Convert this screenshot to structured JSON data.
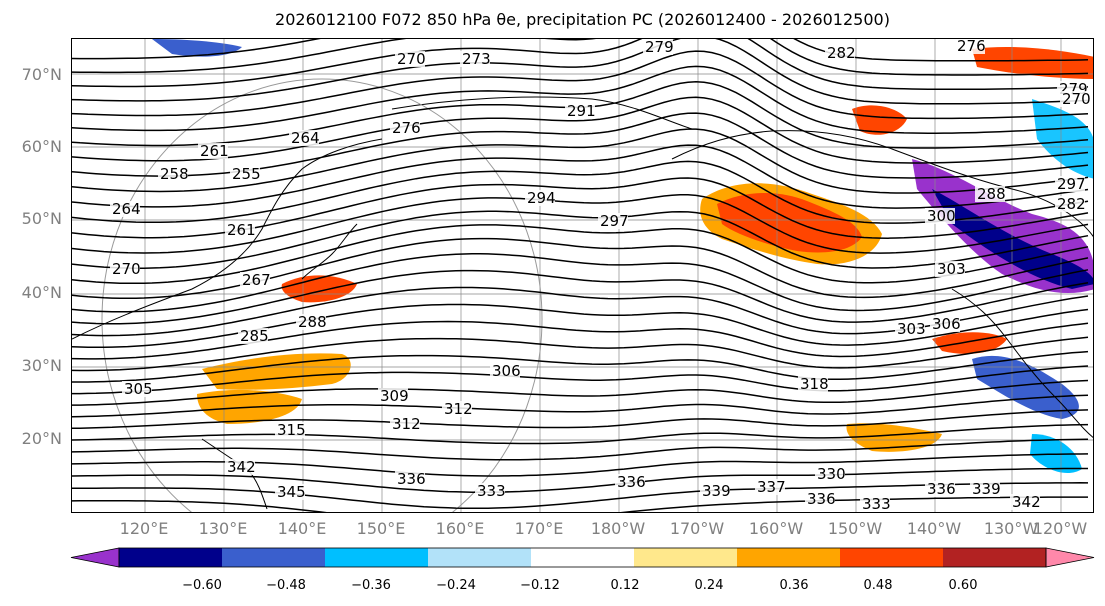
{
  "title": "2026012100 F072 850 hPa θe, precipitation PC (2026012400 - 2026012500)",
  "lat_labels": [
    "70°N",
    "60°N",
    "50°N",
    "40°N",
    "30°N",
    "20°N"
  ],
  "lon_labels": [
    "120°E",
    "130°E",
    "140°E",
    "150°E",
    "160°E",
    "170°E",
    "180°W",
    "170°W",
    "160°W",
    "150°W",
    "140°W",
    "130°W",
    "120°W"
  ],
  "contour_labels": [
    "270",
    "273",
    "279",
    "282",
    "276",
    "279",
    "264",
    "261",
    "258",
    "255",
    "264",
    "261",
    "270",
    "267",
    "276",
    "291",
    "294",
    "297",
    "288",
    "285",
    "305",
    "309",
    "306",
    "315",
    "312",
    "312",
    "342",
    "345",
    "336",
    "333",
    "336",
    "339",
    "337",
    "336",
    "330",
    "333",
    "336",
    "339",
    "342",
    "318",
    "303",
    "303",
    "306",
    "300",
    "297",
    "288",
    "282",
    "270"
  ],
  "colorbar": {
    "colors": [
      "#9932cc",
      "#00008b",
      "#3a5fcd",
      "#00bfff",
      "#b2e2f9",
      "#ffffff",
      "#ffe88c",
      "#ffa500",
      "#ff4500",
      "#b22222",
      "#ff88aa"
    ],
    "tick_labels": [
      "−0.60",
      "−0.48",
      "−0.36",
      "−0.24",
      "−0.12",
      "0.12",
      "0.24",
      "0.36",
      "0.48",
      "0.60"
    ]
  }
}
